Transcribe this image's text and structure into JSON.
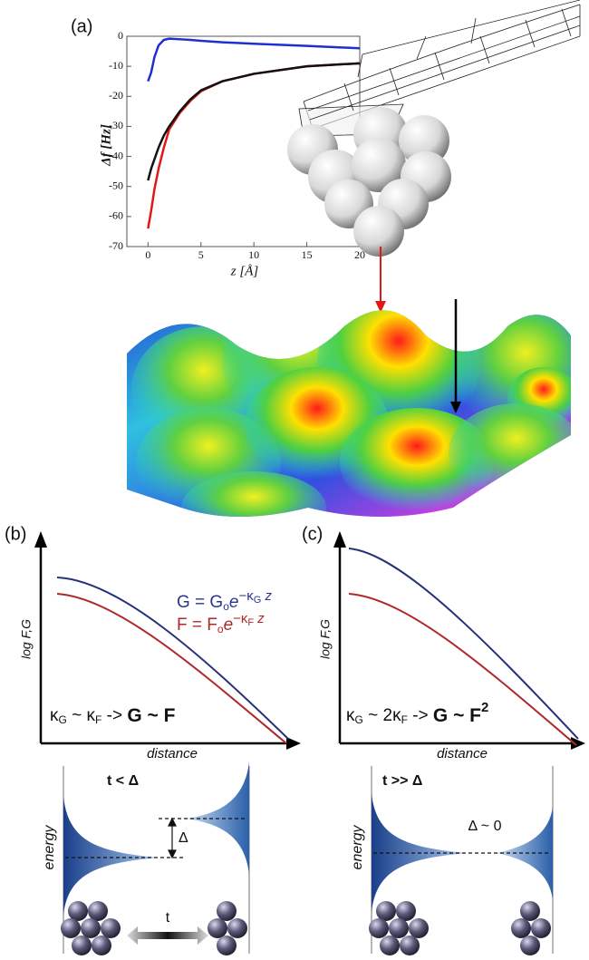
{
  "chart_data": {
    "type": "line",
    "panel_label": "(a)",
    "x_label": "z [Å]",
    "y_label": "Δf [Hz]",
    "x": [
      0,
      0.3,
      0.6,
      1,
      1.5,
      2,
      3,
      4,
      5,
      7,
      10,
      15,
      20
    ],
    "series": [
      {
        "color": "#1f2fd0",
        "values": [
          -15,
          -12,
          -7,
          -3,
          -1.2,
          -0.8,
          -1,
          -1.2,
          -1.5,
          -2,
          -2.5,
          -3.2,
          -4
        ]
      },
      {
        "color": "#e01818",
        "values": [
          -64,
          -58,
          -51,
          -44,
          -37,
          -31,
          -25.5,
          -21.5,
          -18.3,
          -15,
          -12.5,
          -10,
          -9
        ]
      },
      {
        "color": "#111111",
        "values": [
          -48,
          -44,
          -41,
          -37,
          -33,
          -30,
          -25,
          -21,
          -18,
          -15,
          -12.5,
          -10,
          -9
        ]
      }
    ],
    "xlim": [
      -2,
      20
    ],
    "xticks": [
      0,
      5,
      10,
      15,
      20
    ],
    "ylim": [
      -70,
      0
    ],
    "yticks": [
      0,
      -10,
      -20,
      -30,
      -40,
      -50,
      -60,
      -70
    ]
  },
  "panel_b": {
    "label": "(b)",
    "y_label": "log F,G",
    "x_label": "distance",
    "eq_g": [
      "G = G",
      "o",
      "e",
      "−κ",
      "G",
      " z"
    ],
    "eq_f": [
      "F = F",
      "o",
      "e",
      "−κ",
      "F",
      " z"
    ],
    "relation": [
      "κ",
      "G",
      " ~ κ",
      "F",
      " -> ",
      "G ~ F"
    ],
    "condition": "t < Δ",
    "gap": "Δ",
    "energy": "energy",
    "hopping": "t"
  },
  "panel_c": {
    "label": "(c)",
    "y_label": "log F,G",
    "x_label": "distance",
    "relation": [
      "κ",
      "G",
      " ~ 2κ",
      "F",
      " -> ",
      "G ~ F",
      "2"
    ],
    "condition": "t >> Δ",
    "gap": "Δ ~ 0",
    "energy": "energy"
  }
}
